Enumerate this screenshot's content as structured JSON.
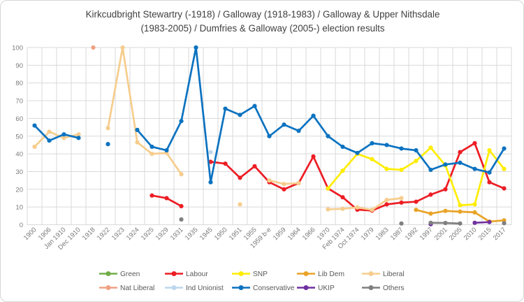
{
  "title": {
    "line1": "Kirkcudbright Stewartry (-1918) / Galloway (1918-1983) / Galloway & Upper Nithsdale",
    "line2": "(1983-2005) / Dumfries & Galloway (2005-) election results"
  },
  "axes": {
    "y_ticks": [
      0,
      10,
      20,
      30,
      40,
      50,
      60,
      70,
      80,
      90,
      100
    ]
  },
  "chart_data": {
    "type": "line",
    "title": "Kirkcudbright Stewartry (-1918) / Galloway (1918-1983) / Galloway & Upper Nithsdale (1983-2005) / Dumfries & Galloway (2005-) election results",
    "xlabel": "",
    "ylabel": "",
    "ylim": [
      0,
      100
    ],
    "ytick_step": 10,
    "grid": true,
    "legend_position": "bottom",
    "categories": [
      "1900",
      "1906",
      "Jan 1910",
      "Dec 1910",
      "1918",
      "1922",
      "1923",
      "1924",
      "1925",
      "1929",
      "1931",
      "1935",
      "1945",
      "1950",
      "1951",
      "1955",
      "1959 b-e",
      "1959",
      "1964",
      "1966",
      "1970",
      "Feb 1974",
      "Oct 1974",
      "1979",
      "1983",
      "1987",
      "1992",
      "1997",
      "2001",
      "2005",
      "2010",
      "2015",
      "2017"
    ],
    "series": [
      {
        "name": "Green",
        "color": "#70AD47",
        "values": [
          null,
          null,
          null,
          null,
          null,
          null,
          null,
          null,
          null,
          null,
          null,
          null,
          null,
          null,
          null,
          null,
          null,
          null,
          null,
          null,
          null,
          null,
          null,
          null,
          null,
          null,
          null,
          null,
          null,
          null,
          null,
          null,
          null
        ]
      },
      {
        "name": "Labour",
        "color": "#ED1C24",
        "values": [
          null,
          null,
          null,
          null,
          null,
          null,
          null,
          null,
          16.5,
          15,
          10.5,
          null,
          35.5,
          34.5,
          26.5,
          33,
          24,
          20,
          23.5,
          38.5,
          20.5,
          15.5,
          8.5,
          8,
          11.5,
          12.5,
          13,
          17,
          20,
          41,
          46,
          24,
          20.5
        ]
      },
      {
        "name": "SNP",
        "color": "#FFED00",
        "values": [
          null,
          null,
          null,
          null,
          null,
          null,
          null,
          null,
          null,
          null,
          null,
          null,
          null,
          null,
          null,
          null,
          null,
          null,
          null,
          null,
          20.5,
          30.5,
          40,
          37,
          31.5,
          31,
          36,
          43.5,
          33.5,
          11,
          11.5,
          42,
          31.5
        ]
      },
      {
        "name": "Lib Dem",
        "color": "#E9A326",
        "values": [
          null,
          null,
          null,
          null,
          null,
          null,
          null,
          null,
          null,
          null,
          null,
          null,
          null,
          null,
          null,
          null,
          null,
          null,
          null,
          null,
          null,
          null,
          null,
          null,
          null,
          null,
          8.4,
          6.3,
          7.8,
          7.4,
          7,
          1.8,
          2.5
        ]
      },
      {
        "name": "Liberal",
        "color": "#F6CD8D",
        "values": [
          44,
          52.5,
          49,
          51,
          null,
          54.5,
          100,
          46.5,
          40,
          40.5,
          28.5,
          null,
          null,
          null,
          11.5,
          null,
          25,
          23,
          23.5,
          null,
          8.7,
          9,
          9.8,
          8.4,
          14,
          15,
          null,
          null,
          null,
          null,
          null,
          null,
          null
        ]
      },
      {
        "name": "Nat Liberal",
        "color": "#EFA183",
        "values": [
          null,
          null,
          null,
          null,
          100,
          null,
          null,
          null,
          null,
          null,
          null,
          null,
          null,
          null,
          null,
          null,
          null,
          null,
          null,
          null,
          null,
          null,
          null,
          null,
          null,
          null,
          null,
          null,
          null,
          null,
          null,
          null,
          null
        ]
      },
      {
        "name": "Ind Unionist",
        "color": "#BDD7EE",
        "values": [
          null,
          null,
          null,
          null,
          null,
          null,
          null,
          null,
          null,
          null,
          null,
          null,
          41,
          null,
          null,
          null,
          null,
          null,
          null,
          null,
          null,
          null,
          null,
          null,
          null,
          null,
          null,
          null,
          null,
          null,
          null,
          null,
          null
        ]
      },
      {
        "name": "Conservative",
        "color": "#0B72C0",
        "values": [
          56,
          47.5,
          51,
          49,
          null,
          45.5,
          null,
          53.5,
          44,
          42,
          58.5,
          100,
          24,
          65.5,
          62,
          67,
          50,
          56.5,
          53,
          61.5,
          50,
          44,
          40.5,
          46,
          45,
          43,
          42,
          31,
          34,
          35,
          31.5,
          29.5,
          43
        ]
      },
      {
        "name": "UKIP",
        "color": "#7030A0",
        "values": [
          null,
          null,
          null,
          null,
          null,
          null,
          null,
          null,
          null,
          null,
          null,
          null,
          null,
          null,
          null,
          null,
          null,
          null,
          null,
          null,
          null,
          null,
          null,
          null,
          null,
          null,
          null,
          0.3,
          null,
          null,
          1.1,
          1.5,
          null
        ]
      },
      {
        "name": "Others",
        "color": "#7F7F7F",
        "values": [
          null,
          null,
          null,
          null,
          null,
          null,
          null,
          null,
          null,
          null,
          3,
          null,
          null,
          null,
          null,
          null,
          null,
          null,
          null,
          null,
          null,
          null,
          null,
          null,
          null,
          0.7,
          null,
          1.1,
          1,
          0.7,
          null,
          null,
          0.9
        ]
      }
    ]
  }
}
